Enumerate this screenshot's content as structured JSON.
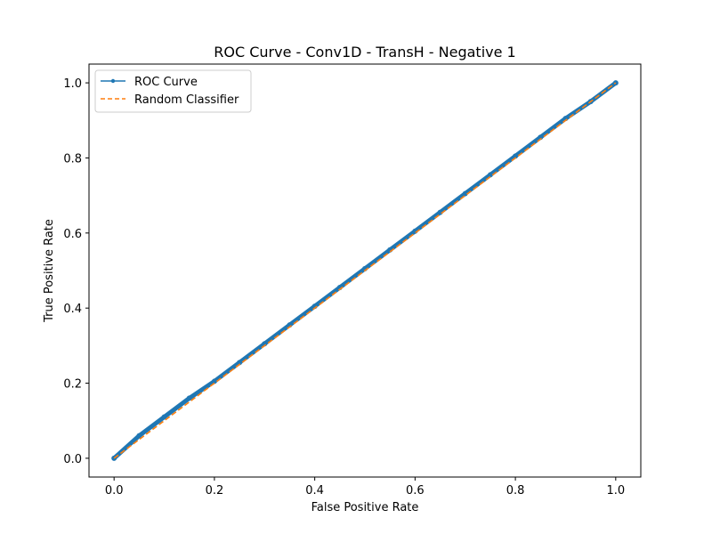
{
  "chart_data": {
    "type": "line",
    "title": "ROC Curve - Conv1D - TransH - Negative 1",
    "xlabel": "False Positive Rate",
    "ylabel": "True Positive Rate",
    "xlim": [
      -0.05,
      1.05
    ],
    "ylim": [
      -0.05,
      1.05
    ],
    "xticks": [
      0.0,
      0.2,
      0.4,
      0.6,
      0.8,
      1.0
    ],
    "yticks": [
      0.0,
      0.2,
      0.4,
      0.6,
      0.8,
      1.0
    ],
    "xtick_labels": [
      "0.0",
      "0.2",
      "0.4",
      "0.6",
      "0.8",
      "1.0"
    ],
    "ytick_labels": [
      "0.0",
      "0.2",
      "0.4",
      "0.6",
      "0.8",
      "1.0"
    ],
    "grid": false,
    "legend_position": "top-left",
    "series": [
      {
        "name": "ROC Curve",
        "color": "#1f77b4",
        "style": "solid-with-dot-markers",
        "x": [
          0.0,
          0.05,
          0.1,
          0.15,
          0.2,
          0.25,
          0.3,
          0.35,
          0.4,
          0.45,
          0.5,
          0.55,
          0.6,
          0.65,
          0.7,
          0.75,
          0.8,
          0.85,
          0.9,
          0.95,
          1.0
        ],
        "y": [
          0.0,
          0.06,
          0.11,
          0.16,
          0.205,
          0.255,
          0.305,
          0.355,
          0.405,
          0.455,
          0.505,
          0.555,
          0.605,
          0.655,
          0.705,
          0.755,
          0.805,
          0.855,
          0.905,
          0.95,
          1.0
        ]
      },
      {
        "name": "Random Classifier",
        "color": "#ff7f0e",
        "style": "dashed",
        "x": [
          0.0,
          1.0
        ],
        "y": [
          0.0,
          1.0
        ]
      }
    ]
  }
}
